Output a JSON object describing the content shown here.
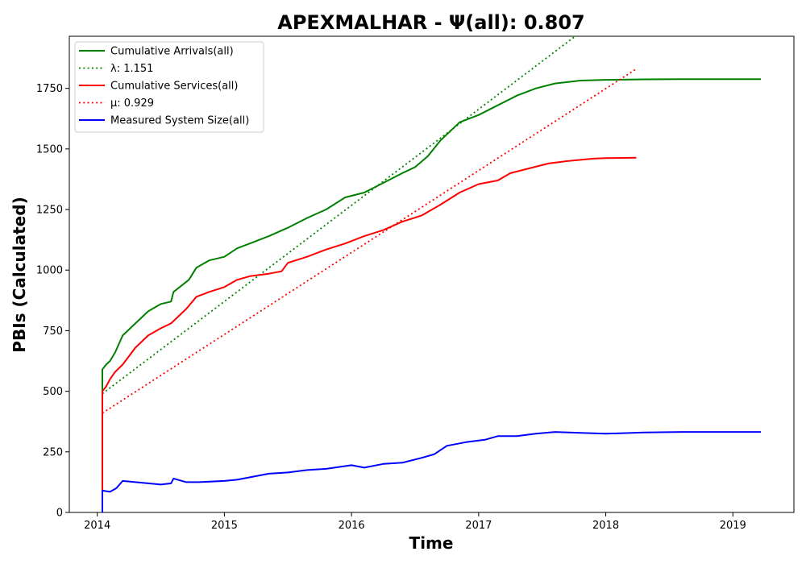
{
  "chart_data": {
    "type": "line",
    "title": "APEXMALHAR -  Ψ(all): 0.807",
    "xlabel": "Time",
    "ylabel": "PBIs (Calculated)",
    "xlim": [
      2013.78,
      2019.48
    ],
    "ylim": [
      0,
      1965
    ],
    "x_ticks": [
      2014,
      2015,
      2016,
      2017,
      2018,
      2019
    ],
    "y_ticks": [
      0,
      250,
      500,
      750,
      1000,
      1250,
      1500,
      1750
    ],
    "grid": false,
    "legend_position": "upper-left",
    "series": [
      {
        "name": "Cumulative Arrivals(all)",
        "style": "solid",
        "color": "#008000",
        "points": [
          [
            2014.04,
            0
          ],
          [
            2014.04,
            590
          ],
          [
            2014.07,
            610
          ],
          [
            2014.1,
            625
          ],
          [
            2014.14,
            660
          ],
          [
            2014.2,
            730
          ],
          [
            2014.3,
            780
          ],
          [
            2014.4,
            830
          ],
          [
            2014.5,
            860
          ],
          [
            2014.58,
            870
          ],
          [
            2014.6,
            910
          ],
          [
            2014.72,
            960
          ],
          [
            2014.78,
            1010
          ],
          [
            2014.88,
            1040
          ],
          [
            2015.0,
            1055
          ],
          [
            2015.1,
            1090
          ],
          [
            2015.2,
            1110
          ],
          [
            2015.35,
            1140
          ],
          [
            2015.5,
            1175
          ],
          [
            2015.65,
            1215
          ],
          [
            2015.8,
            1250
          ],
          [
            2015.95,
            1300
          ],
          [
            2016.1,
            1320
          ],
          [
            2016.25,
            1360
          ],
          [
            2016.4,
            1400
          ],
          [
            2016.5,
            1425
          ],
          [
            2016.6,
            1470
          ],
          [
            2016.7,
            1535
          ],
          [
            2016.85,
            1610
          ],
          [
            2017.0,
            1640
          ],
          [
            2017.15,
            1680
          ],
          [
            2017.3,
            1720
          ],
          [
            2017.45,
            1750
          ],
          [
            2017.6,
            1770
          ],
          [
            2017.8,
            1782
          ],
          [
            2018.0,
            1785
          ],
          [
            2018.3,
            1787
          ],
          [
            2018.6,
            1788
          ],
          [
            2019.22,
            1788
          ]
        ]
      },
      {
        "name": "λ: 1.151",
        "style": "dotted",
        "color": "#008000",
        "points": [
          [
            2014.04,
            490
          ],
          [
            2017.76,
            1965
          ]
        ]
      },
      {
        "name": "Cumulative Services(all)",
        "style": "solid",
        "color": "#ff0000",
        "points": [
          [
            2014.04,
            0
          ],
          [
            2014.04,
            500
          ],
          [
            2014.07,
            520
          ],
          [
            2014.1,
            550
          ],
          [
            2014.14,
            580
          ],
          [
            2014.2,
            610
          ],
          [
            2014.3,
            680
          ],
          [
            2014.4,
            730
          ],
          [
            2014.5,
            760
          ],
          [
            2014.58,
            780
          ],
          [
            2014.7,
            840
          ],
          [
            2014.78,
            890
          ],
          [
            2014.88,
            910
          ],
          [
            2015.0,
            930
          ],
          [
            2015.1,
            960
          ],
          [
            2015.2,
            975
          ],
          [
            2015.35,
            985
          ],
          [
            2015.45,
            995
          ],
          [
            2015.5,
            1030
          ],
          [
            2015.65,
            1055
          ],
          [
            2015.8,
            1085
          ],
          [
            2015.95,
            1110
          ],
          [
            2016.1,
            1140
          ],
          [
            2016.25,
            1165
          ],
          [
            2016.4,
            1200
          ],
          [
            2016.55,
            1225
          ],
          [
            2016.7,
            1270
          ],
          [
            2016.85,
            1320
          ],
          [
            2017.0,
            1355
          ],
          [
            2017.15,
            1370
          ],
          [
            2017.25,
            1400
          ],
          [
            2017.4,
            1420
          ],
          [
            2017.55,
            1440
          ],
          [
            2017.7,
            1450
          ],
          [
            2017.9,
            1460
          ],
          [
            2018.0,
            1462
          ],
          [
            2018.24,
            1464
          ]
        ]
      },
      {
        "name": "μ: 0.929",
        "style": "dotted",
        "color": "#ff0000",
        "points": [
          [
            2014.04,
            410
          ],
          [
            2018.24,
            1830
          ]
        ]
      },
      {
        "name": "Measured System Size(all)",
        "style": "solid",
        "color": "#0000ff",
        "points": [
          [
            2014.04,
            0
          ],
          [
            2014.04,
            90
          ],
          [
            2014.1,
            85
          ],
          [
            2014.15,
            100
          ],
          [
            2014.2,
            130
          ],
          [
            2014.3,
            125
          ],
          [
            2014.4,
            120
          ],
          [
            2014.5,
            115
          ],
          [
            2014.58,
            120
          ],
          [
            2014.6,
            140
          ],
          [
            2014.7,
            125
          ],
          [
            2014.8,
            125
          ],
          [
            2015.0,
            130
          ],
          [
            2015.1,
            135
          ],
          [
            2015.2,
            145
          ],
          [
            2015.35,
            160
          ],
          [
            2015.5,
            165
          ],
          [
            2015.65,
            175
          ],
          [
            2015.8,
            180
          ],
          [
            2016.0,
            195
          ],
          [
            2016.1,
            185
          ],
          [
            2016.25,
            200
          ],
          [
            2016.4,
            205
          ],
          [
            2016.55,
            225
          ],
          [
            2016.65,
            240
          ],
          [
            2016.75,
            275
          ],
          [
            2016.9,
            290
          ],
          [
            2017.05,
            300
          ],
          [
            2017.15,
            315
          ],
          [
            2017.3,
            315
          ],
          [
            2017.45,
            325
          ],
          [
            2017.6,
            332
          ],
          [
            2017.8,
            328
          ],
          [
            2018.0,
            325
          ],
          [
            2018.3,
            330
          ],
          [
            2018.6,
            332
          ],
          [
            2019.22,
            332
          ]
        ]
      }
    ]
  }
}
